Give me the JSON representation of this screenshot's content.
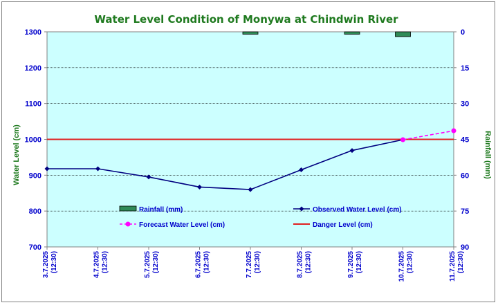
{
  "chart_data": {
    "type": "line",
    "title": "Water Level Condition of Monywa at Chindwin River",
    "ylabel": "Water Level (cm)",
    "y2label": "Rainfall (mm)",
    "ylim": [
      700,
      1300
    ],
    "y2lim": [
      0,
      90
    ],
    "y2_inverted": true,
    "yticks": [
      1300,
      1200,
      1100,
      1000,
      900,
      800,
      700
    ],
    "y2ticks": [
      0,
      15,
      30,
      45,
      60,
      75,
      90
    ],
    "grid": true,
    "background_color": "#ccffff",
    "categories": [
      {
        "date": "3.7.2025",
        "time": "(12:30)"
      },
      {
        "date": "4.7.2025",
        "time": "(12:30)"
      },
      {
        "date": "5.7.2025",
        "time": "(12:30)"
      },
      {
        "date": "6.7.2025",
        "time": "(12:30)"
      },
      {
        "date": "7.7.2025",
        "time": "(12:30)"
      },
      {
        "date": "8.7.2025",
        "time": "(12:30)"
      },
      {
        "date": "9.7.2025",
        "time": "(12:30)"
      },
      {
        "date": "10.7.2025",
        "time": "(12:30)"
      },
      {
        "date": "11.7.2025",
        "time": "(12:30)"
      }
    ],
    "series": [
      {
        "name": "Rainfall (mm)",
        "kind": "bar",
        "axis": "right",
        "color": "#2e8b57",
        "values": [
          0,
          0,
          0,
          0,
          1,
          0,
          1,
          2,
          0
        ]
      },
      {
        "name": "Observed Water Level (cm)",
        "kind": "line",
        "axis": "left",
        "color": "#000080",
        "marker": "diamond",
        "values": [
          918,
          918,
          895,
          867,
          860,
          915,
          969,
          999,
          null
        ]
      },
      {
        "name": "Forecast Water Level (cm)",
        "kind": "line",
        "axis": "left",
        "color": "#ff00ff",
        "marker": "circle",
        "dashed": true,
        "values": [
          null,
          null,
          null,
          null,
          null,
          null,
          null,
          999,
          1024
        ]
      },
      {
        "name": "Danger Level (cm)",
        "kind": "hline",
        "axis": "left",
        "color": "#e02020",
        "value": 1000
      }
    ],
    "legend_placement": "inside-bottom"
  }
}
